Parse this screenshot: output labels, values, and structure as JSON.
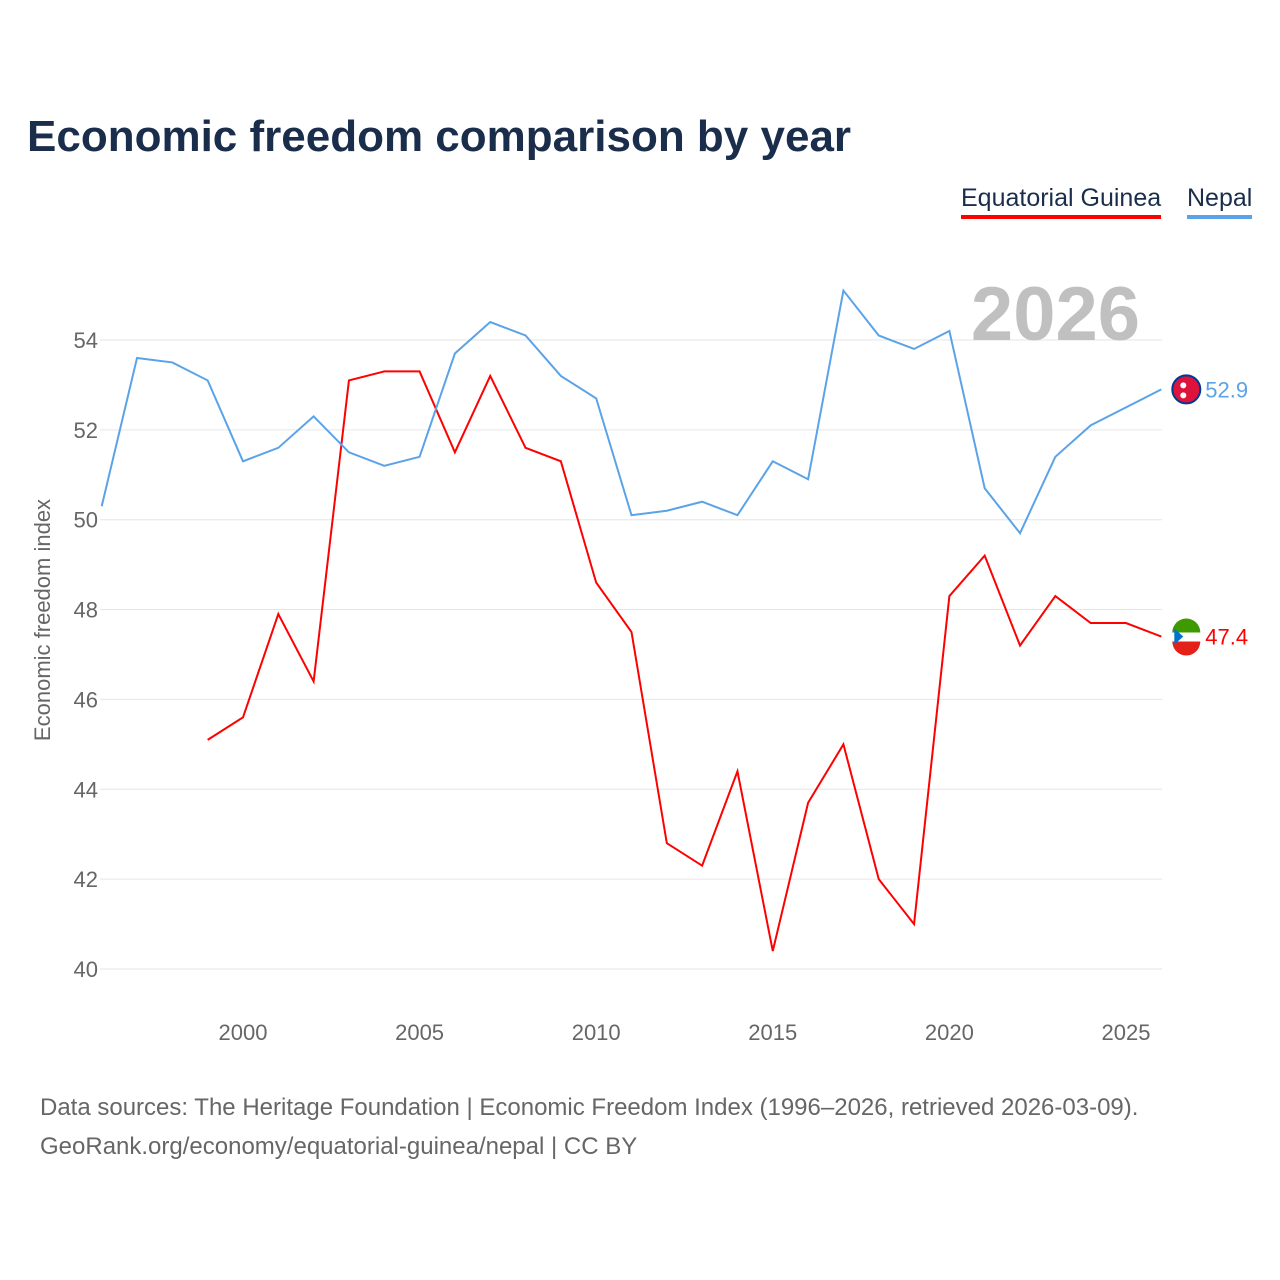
{
  "title": "Economic freedom comparison by year",
  "legend": {
    "eg": "Equatorial Guinea",
    "np": "Nepal"
  },
  "year_watermark": "2026",
  "footer": {
    "line1": "Data sources: The Heritage Foundation | Economic Freedom Index (1996–2026, retrieved 2026-03-09).",
    "line2": "GeoRank.org/economy/equatorial-guinea/nepal | CC BY"
  },
  "chart_data": {
    "type": "line",
    "title": "Economic freedom comparison by year",
    "xlabel": "",
    "ylabel": "Economic freedom index",
    "xlim": [
      1996,
      2026
    ],
    "ylim": [
      40,
      55
    ],
    "x_ticks": [
      2000,
      2005,
      2010,
      2015,
      2020,
      2025
    ],
    "y_ticks": [
      40,
      42,
      44,
      46,
      48,
      50,
      52,
      54
    ],
    "legend_position": "top-right",
    "series": [
      {
        "name": "Equatorial Guinea",
        "color": "#ff0000",
        "end_label": "47.4",
        "x": [
          1999,
          2000,
          2001,
          2002,
          2003,
          2004,
          2005,
          2006,
          2007,
          2008,
          2009,
          2010,
          2011,
          2012,
          2013,
          2014,
          2015,
          2016,
          2017,
          2018,
          2019,
          2020,
          2021,
          2022,
          2023,
          2024,
          2025,
          2026
        ],
        "values": [
          45.1,
          45.6,
          47.9,
          46.4,
          53.1,
          53.3,
          53.3,
          51.5,
          53.2,
          51.6,
          51.3,
          48.6,
          47.5,
          42.8,
          42.3,
          44.4,
          40.4,
          43.7,
          45.0,
          42.0,
          41.0,
          48.3,
          49.2,
          47.2,
          48.3,
          47.7,
          47.7,
          47.4
        ]
      },
      {
        "name": "Nepal",
        "color": "#5ba3e8",
        "end_label": "52.9",
        "x": [
          1996,
          1997,
          1998,
          1999,
          2000,
          2001,
          2002,
          2003,
          2004,
          2005,
          2006,
          2007,
          2008,
          2009,
          2010,
          2011,
          2012,
          2013,
          2014,
          2015,
          2016,
          2017,
          2018,
          2019,
          2020,
          2021,
          2022,
          2023,
          2024,
          2025,
          2026
        ],
        "values": [
          50.3,
          53.6,
          53.5,
          53.1,
          51.3,
          51.6,
          52.3,
          51.5,
          51.2,
          51.4,
          53.7,
          54.4,
          54.1,
          53.2,
          52.7,
          50.1,
          50.2,
          50.4,
          50.1,
          51.3,
          50.9,
          55.1,
          54.1,
          53.8,
          54.2,
          50.7,
          49.7,
          51.4,
          52.1,
          52.5,
          52.9
        ]
      }
    ]
  }
}
